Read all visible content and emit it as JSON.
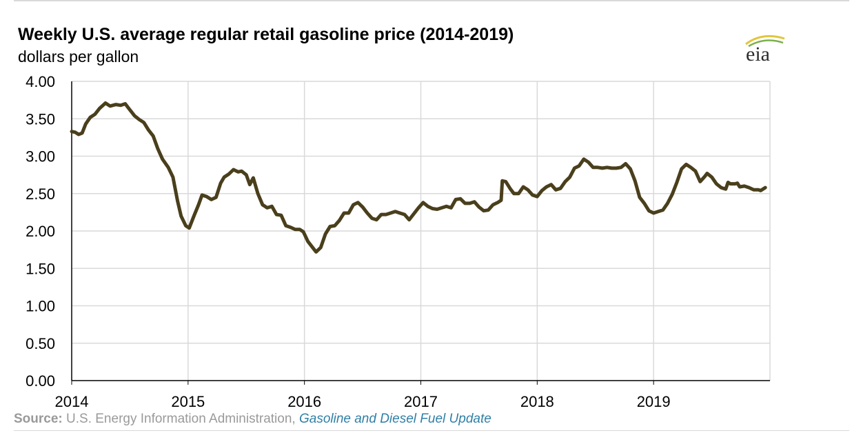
{
  "header": {
    "title": "Weekly U.S. average regular retail gasoline price (2014-2019)",
    "subtitle": "dollars per gallon",
    "logo_text": "eia"
  },
  "footer": {
    "source_label": "Source:",
    "source_text": "U.S. Energy Information Administration,",
    "source_link": "Gasoline and Diesel Fuel Update"
  },
  "colors": {
    "line": "#4a3f1c",
    "grid": "#d9d9d9",
    "axis": "#000000",
    "source_gray": "#9a9a9a",
    "link_blue": "#2f7fa6"
  },
  "chart_data": {
    "type": "line",
    "title": "Weekly U.S. average regular retail gasoline price (2014-2019)",
    "ylabel": "dollars per gallon",
    "xlabel": "",
    "ylim": [
      0,
      4
    ],
    "xlim": [
      2014.0,
      2020.0
    ],
    "grid": true,
    "yticks": [
      "0.00",
      "0.50",
      "1.00",
      "1.50",
      "2.00",
      "2.50",
      "3.00",
      "3.50",
      "4.00"
    ],
    "xticks": [
      "2014",
      "2015",
      "2016",
      "2017",
      "2018",
      "2019"
    ],
    "series": [
      {
        "points": [
          [
            2014.0,
            3.33
          ],
          [
            2014.03,
            3.32
          ],
          [
            2014.06,
            3.29
          ],
          [
            2014.09,
            3.31
          ],
          [
            2014.12,
            3.43
          ],
          [
            2014.16,
            3.52
          ],
          [
            2014.2,
            3.56
          ],
          [
            2014.24,
            3.64
          ],
          [
            2014.29,
            3.71
          ],
          [
            2014.33,
            3.67
          ],
          [
            2014.38,
            3.69
          ],
          [
            2014.42,
            3.68
          ],
          [
            2014.46,
            3.7
          ],
          [
            2014.49,
            3.64
          ],
          [
            2014.54,
            3.54
          ],
          [
            2014.58,
            3.49
          ],
          [
            2014.62,
            3.45
          ],
          [
            2014.66,
            3.35
          ],
          [
            2014.7,
            3.27
          ],
          [
            2014.74,
            3.1
          ],
          [
            2014.78,
            2.96
          ],
          [
            2014.83,
            2.85
          ],
          [
            2014.87,
            2.72
          ],
          [
            2014.91,
            2.4
          ],
          [
            2014.94,
            2.2
          ],
          [
            2014.98,
            2.07
          ],
          [
            2015.01,
            2.04
          ],
          [
            2015.05,
            2.2
          ],
          [
            2015.09,
            2.35
          ],
          [
            2015.12,
            2.48
          ],
          [
            2015.16,
            2.46
          ],
          [
            2015.2,
            2.42
          ],
          [
            2015.24,
            2.45
          ],
          [
            2015.28,
            2.64
          ],
          [
            2015.31,
            2.72
          ],
          [
            2015.35,
            2.76
          ],
          [
            2015.39,
            2.82
          ],
          [
            2015.43,
            2.79
          ],
          [
            2015.46,
            2.8
          ],
          [
            2015.5,
            2.75
          ],
          [
            2015.53,
            2.62
          ],
          [
            2015.56,
            2.71
          ],
          [
            2015.6,
            2.5
          ],
          [
            2015.64,
            2.35
          ],
          [
            2015.68,
            2.31
          ],
          [
            2015.72,
            2.33
          ],
          [
            2015.76,
            2.22
          ],
          [
            2015.8,
            2.21
          ],
          [
            2015.84,
            2.07
          ],
          [
            2015.88,
            2.05
          ],
          [
            2015.92,
            2.02
          ],
          [
            2015.96,
            2.02
          ],
          [
            2015.99,
            1.99
          ],
          [
            2016.03,
            1.86
          ],
          [
            2016.07,
            1.78
          ],
          [
            2016.1,
            1.72
          ],
          [
            2016.14,
            1.78
          ],
          [
            2016.18,
            1.96
          ],
          [
            2016.22,
            2.06
          ],
          [
            2016.26,
            2.07
          ],
          [
            2016.3,
            2.14
          ],
          [
            2016.34,
            2.24
          ],
          [
            2016.38,
            2.24
          ],
          [
            2016.42,
            2.35
          ],
          [
            2016.46,
            2.38
          ],
          [
            2016.5,
            2.32
          ],
          [
            2016.54,
            2.24
          ],
          [
            2016.58,
            2.17
          ],
          [
            2016.62,
            2.15
          ],
          [
            2016.66,
            2.22
          ],
          [
            2016.7,
            2.22
          ],
          [
            2016.74,
            2.24
          ],
          [
            2016.78,
            2.26
          ],
          [
            2016.82,
            2.24
          ],
          [
            2016.86,
            2.22
          ],
          [
            2016.9,
            2.15
          ],
          [
            2016.94,
            2.23
          ],
          [
            2016.98,
            2.31
          ],
          [
            2017.02,
            2.38
          ],
          [
            2017.06,
            2.33
          ],
          [
            2017.1,
            2.3
          ],
          [
            2017.14,
            2.29
          ],
          [
            2017.18,
            2.31
          ],
          [
            2017.22,
            2.33
          ],
          [
            2017.26,
            2.31
          ],
          [
            2017.3,
            2.42
          ],
          [
            2017.34,
            2.43
          ],
          [
            2017.38,
            2.37
          ],
          [
            2017.42,
            2.37
          ],
          [
            2017.46,
            2.39
          ],
          [
            2017.5,
            2.32
          ],
          [
            2017.54,
            2.27
          ],
          [
            2017.58,
            2.28
          ],
          [
            2017.62,
            2.35
          ],
          [
            2017.66,
            2.38
          ],
          [
            2017.69,
            2.41
          ],
          [
            2017.7,
            2.67
          ],
          [
            2017.73,
            2.66
          ],
          [
            2017.77,
            2.56
          ],
          [
            2017.8,
            2.5
          ],
          [
            2017.84,
            2.5
          ],
          [
            2017.88,
            2.59
          ],
          [
            2017.92,
            2.55
          ],
          [
            2017.96,
            2.48
          ],
          [
            2018.0,
            2.46
          ],
          [
            2018.04,
            2.54
          ],
          [
            2018.08,
            2.59
          ],
          [
            2018.12,
            2.62
          ],
          [
            2018.16,
            2.55
          ],
          [
            2018.2,
            2.57
          ],
          [
            2018.24,
            2.66
          ],
          [
            2018.28,
            2.72
          ],
          [
            2018.32,
            2.84
          ],
          [
            2018.36,
            2.87
          ],
          [
            2018.4,
            2.96
          ],
          [
            2018.44,
            2.92
          ],
          [
            2018.48,
            2.85
          ],
          [
            2018.52,
            2.85
          ],
          [
            2018.56,
            2.84
          ],
          [
            2018.6,
            2.85
          ],
          [
            2018.64,
            2.84
          ],
          [
            2018.68,
            2.84
          ],
          [
            2018.72,
            2.85
          ],
          [
            2018.76,
            2.9
          ],
          [
            2018.8,
            2.83
          ],
          [
            2018.84,
            2.67
          ],
          [
            2018.88,
            2.45
          ],
          [
            2018.92,
            2.37
          ],
          [
            2018.96,
            2.27
          ],
          [
            2019.0,
            2.24
          ],
          [
            2019.04,
            2.26
          ],
          [
            2019.08,
            2.28
          ],
          [
            2019.12,
            2.37
          ],
          [
            2019.16,
            2.49
          ],
          [
            2019.2,
            2.65
          ],
          [
            2019.24,
            2.83
          ],
          [
            2019.28,
            2.89
          ],
          [
            2019.32,
            2.85
          ],
          [
            2019.36,
            2.8
          ],
          [
            2019.4,
            2.66
          ],
          [
            2019.44,
            2.73
          ],
          [
            2019.46,
            2.77
          ],
          [
            2019.5,
            2.72
          ],
          [
            2019.54,
            2.63
          ],
          [
            2019.58,
            2.58
          ],
          [
            2019.62,
            2.56
          ],
          [
            2019.64,
            2.65
          ],
          [
            2019.66,
            2.63
          ],
          [
            2019.7,
            2.63
          ],
          [
            2019.72,
            2.64
          ],
          [
            2019.74,
            2.59
          ],
          [
            2019.78,
            2.6
          ],
          [
            2019.82,
            2.58
          ],
          [
            2019.86,
            2.55
          ],
          [
            2019.9,
            2.55
          ],
          [
            2019.92,
            2.54
          ],
          [
            2019.96,
            2.58
          ]
        ]
      }
    ]
  }
}
